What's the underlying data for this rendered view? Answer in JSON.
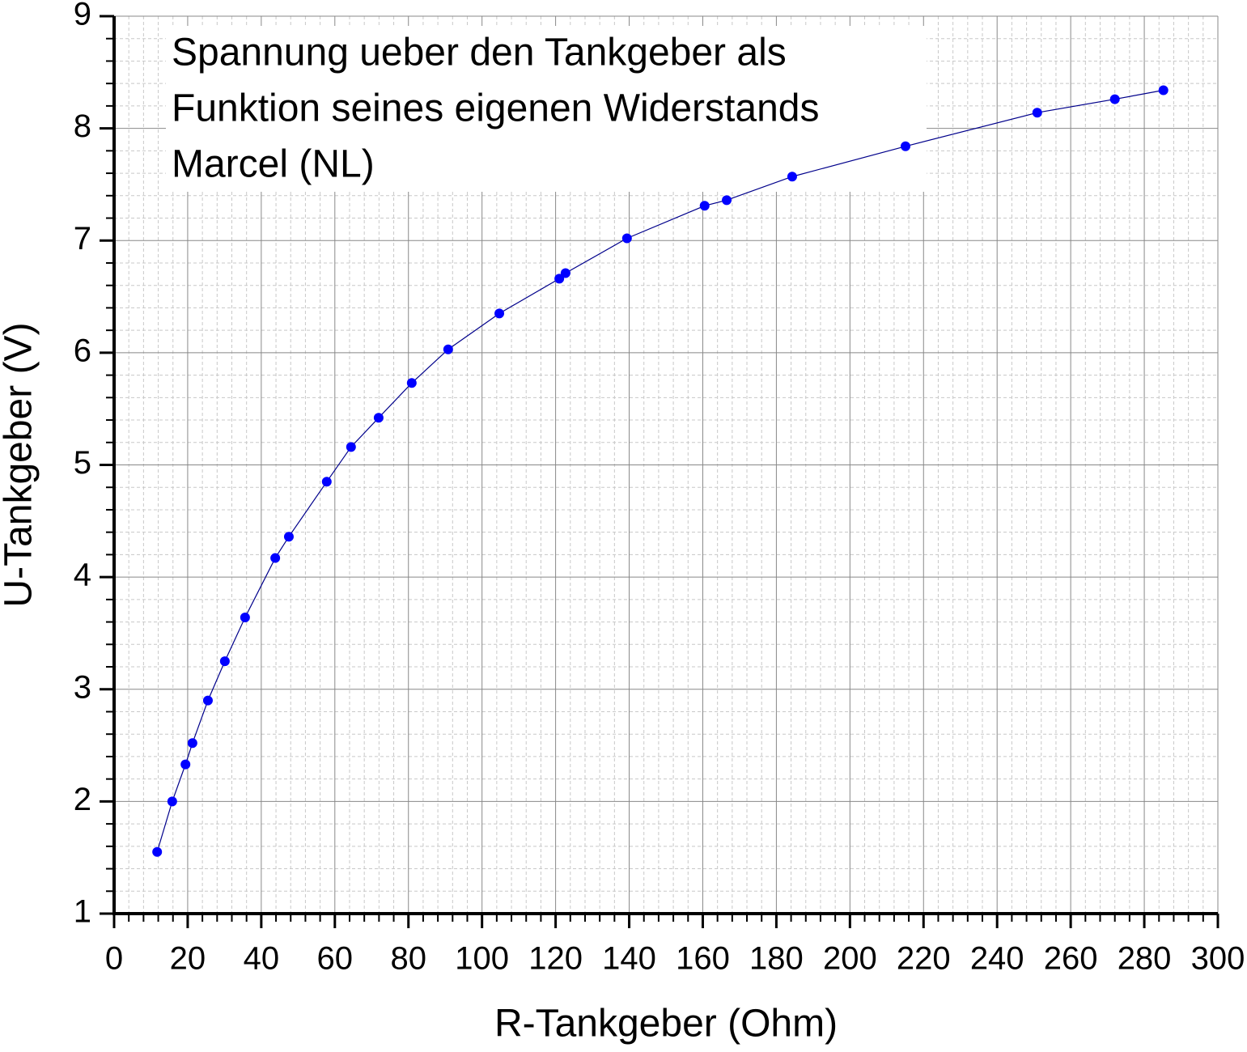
{
  "chart_data": {
    "type": "scatter",
    "title": [
      "Spannung ueber den Tankgeber als",
      "Funktion seines eigenen Widerstands",
      "Marcel (NL)"
    ],
    "x_label": "R-Tankgeber (Ohm)",
    "y_label": "U-Tankgeber (V)",
    "xlim": [
      0,
      300
    ],
    "xticks": [
      0,
      20,
      40,
      60,
      80,
      100,
      120,
      140,
      160,
      180,
      200,
      220,
      240,
      260,
      280,
      300
    ],
    "ylim": [
      1,
      9
    ],
    "yticks": [
      1,
      2,
      3,
      4,
      5,
      6,
      7,
      8,
      9
    ],
    "grid": true,
    "minor_per_major": 4,
    "series": [
      {
        "color": "#0000ff",
        "line_color": "#00008b",
        "x": [
          11.7,
          15.8,
          19.4,
          21.3,
          25.5,
          30.1,
          35.6,
          43.8,
          47.5,
          57.8,
          64.4,
          71.9,
          80.9,
          90.8,
          104.7,
          121.0,
          122.7,
          139.4,
          160.5,
          166.5,
          184.3,
          215.1,
          250.9,
          272.0,
          285.2
        ],
        "values": [
          1.55,
          2.0,
          2.33,
          2.52,
          2.9,
          3.25,
          3.64,
          4.17,
          4.36,
          4.85,
          5.16,
          5.42,
          5.73,
          6.03,
          6.35,
          6.66,
          6.71,
          7.02,
          7.31,
          7.36,
          7.57,
          7.84,
          8.14,
          8.26,
          8.34
        ]
      }
    ]
  }
}
